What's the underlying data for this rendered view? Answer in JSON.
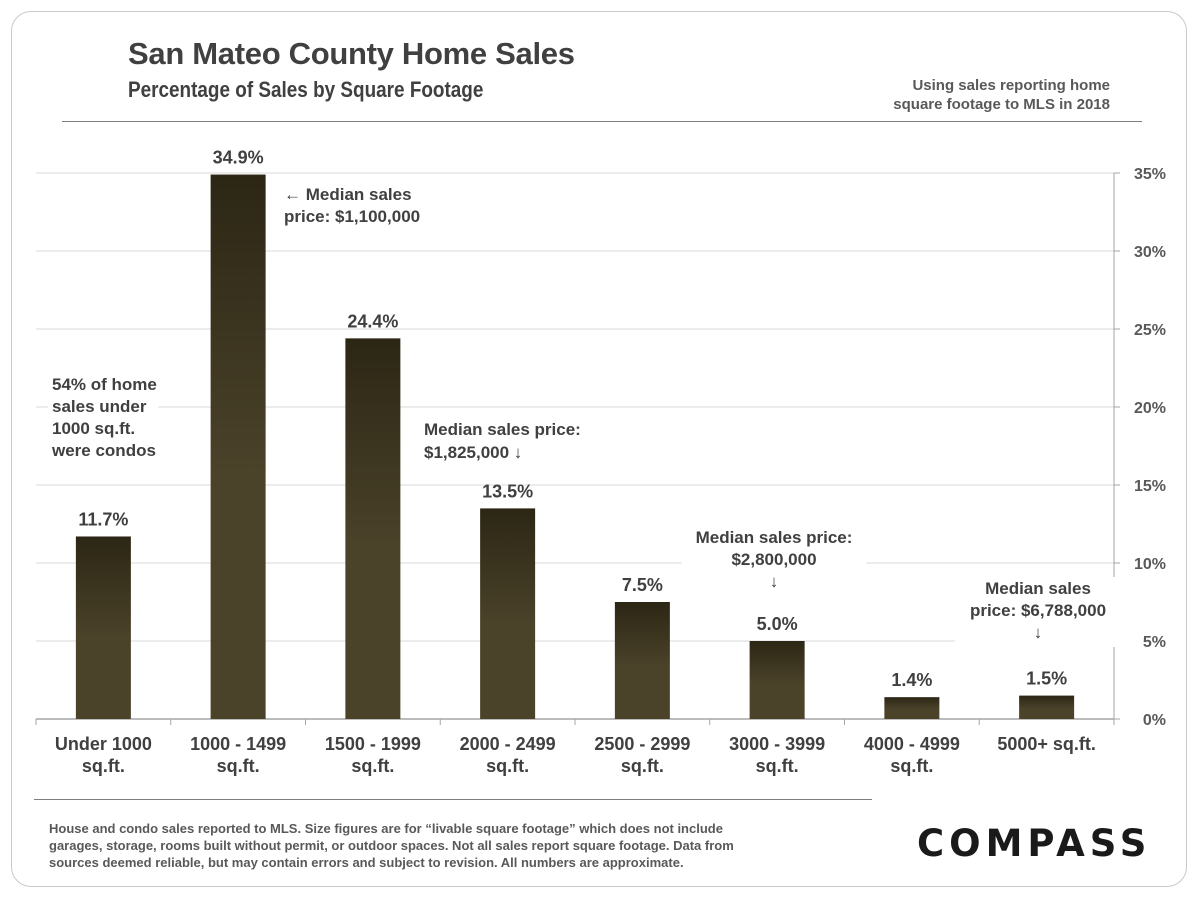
{
  "header": {
    "title": "San Mateo County Home Sales",
    "subtitle": "Percentage of Sales by Square Footage",
    "note_lines": [
      "Using sales reporting home",
      "square footage to MLS in 2018"
    ]
  },
  "chart_data": {
    "type": "bar",
    "categories": [
      [
        "Under 1000",
        "sq.ft."
      ],
      [
        "1000 - 1499",
        "sq.ft."
      ],
      [
        "1500 - 1999",
        "sq.ft."
      ],
      [
        "2000 - 2499",
        "sq.ft."
      ],
      [
        "2500 - 2999",
        "sq.ft."
      ],
      [
        "3000 - 3999",
        "sq.ft."
      ],
      [
        "4000 - 4999",
        "sq.ft."
      ],
      [
        "5000+ sq.ft.",
        ""
      ]
    ],
    "values": [
      11.7,
      34.9,
      24.4,
      13.5,
      7.5,
      5.0,
      1.4,
      1.5
    ],
    "value_labels": [
      "11.7%",
      "34.9%",
      "24.4%",
      "13.5%",
      "7.5%",
      "5.0%",
      "1.4%",
      "1.5%"
    ],
    "ylim": [
      0,
      35
    ],
    "y_ticks": [
      0,
      5,
      10,
      15,
      20,
      25,
      30,
      35
    ],
    "y_tick_labels": [
      "0%",
      "5%",
      "10%",
      "15%",
      "20%",
      "25%",
      "30%",
      "35%"
    ],
    "y_axis_side": "right",
    "grid": true,
    "bar_color_top": "#2c2615",
    "bar_color": "#4a4229",
    "annotations": [
      {
        "lines": [
          "54% of home",
          "sales under",
          "1000 sq.ft.",
          "were condos"
        ]
      },
      {
        "lines": [
          "← Median sales",
          "price: $1,100,000"
        ]
      },
      {
        "lines": [
          "Median sales price:",
          "$1,825,000 ↓"
        ]
      },
      {
        "lines": [
          "Median sales price:",
          "$2,800,000",
          "↓"
        ]
      },
      {
        "lines": [
          "Median sales",
          "price: $6,788,000",
          "↓"
        ]
      }
    ]
  },
  "footer": {
    "lines": [
      "House and condo sales reported to MLS. Size figures are for “livable square footage” which does not include",
      "garages, storage, rooms built without permit, or outdoor spaces. Not all sales report square footage. Data from",
      "sources deemed reliable, but may contain errors and subject to revision.  All numbers are approximate."
    ]
  },
  "brand": {
    "logo_text": "COMPASS"
  }
}
